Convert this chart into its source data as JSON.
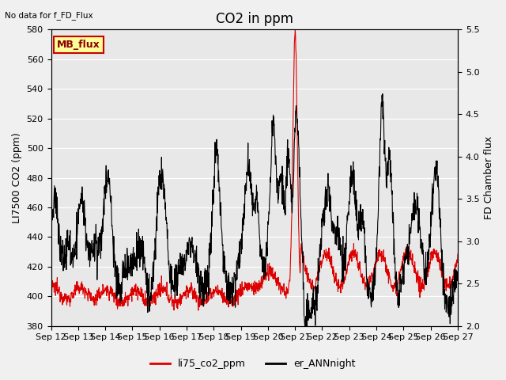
{
  "title": "CO2 in ppm",
  "top_left_note": "No data for f_FD_Flux",
  "ylabel_left": "LI7500 CO2 (ppm)",
  "ylabel_right": "FD Chamber flux",
  "ylim_left": [
    380,
    580
  ],
  "ylim_right": [
    2.0,
    5.5
  ],
  "yticks_left": [
    380,
    400,
    420,
    440,
    460,
    480,
    500,
    520,
    540,
    560,
    580
  ],
  "yticks_right": [
    2.0,
    2.5,
    3.0,
    3.5,
    4.0,
    4.5,
    5.0,
    5.5
  ],
  "xtick_labels": [
    "Sep 12",
    "Sep 13",
    "Sep 14",
    "Sep 15",
    "Sep 16",
    "Sep 17",
    "Sep 18",
    "Sep 19",
    "Sep 20",
    "Sep 21",
    "Sep 22",
    "Sep 23",
    "Sep 24",
    "Sep 25",
    "Sep 26",
    "Sep 27"
  ],
  "legend_labels": [
    "li75_co2_ppm",
    "er_ANNnight"
  ],
  "legend_colors": [
    "#dd0000",
    "#000000"
  ],
  "inset_label": "MB_flux",
  "inset_facecolor": "#ffff99",
  "inset_edgecolor": "#cc0000",
  "plot_bgcolor": "#e8e8e8",
  "fig_bgcolor": "#f0f0f0",
  "grid_color": "#ffffff",
  "title_fontsize": 12,
  "axis_fontsize": 9,
  "tick_fontsize": 8
}
